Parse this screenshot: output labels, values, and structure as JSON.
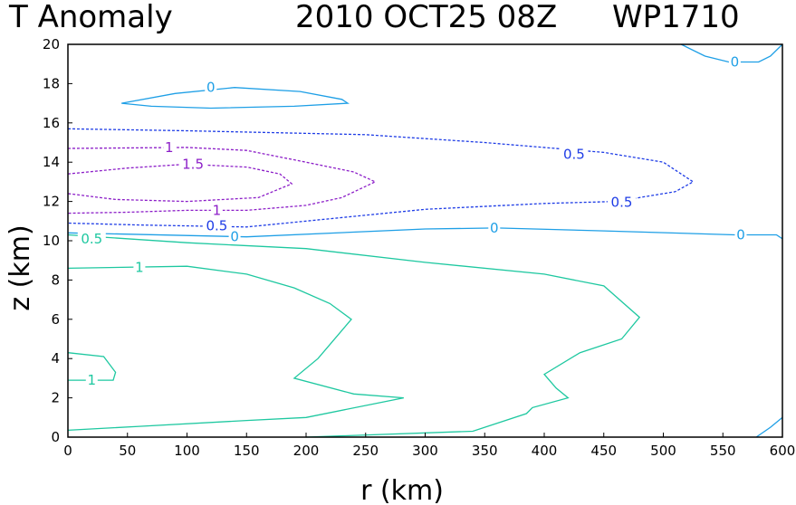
{
  "chart_data": {
    "type": "contour",
    "title_left": "T Anomaly",
    "title_mid": "2010 OCT25 08Z",
    "title_right": "WP1710",
    "xlabel": "r (km)",
    "ylabel": "z (km)",
    "xlim": [
      0,
      600
    ],
    "ylim": [
      0,
      20
    ],
    "xticks": [
      "0",
      "50",
      "100",
      "150",
      "200",
      "250",
      "300",
      "350",
      "400",
      "450",
      "500",
      "550",
      "600"
    ],
    "yticks": [
      "0",
      "2",
      "4",
      "6",
      "8",
      "10",
      "12",
      "14",
      "16",
      "18",
      "20"
    ],
    "grid": false,
    "colors": {
      "teal": "#1ec8a0",
      "cyan": "#1e9fe6",
      "blue": "#1e3ce6",
      "purple": "#8c1ec8"
    },
    "contours": [
      {
        "label": "0",
        "color": "cyan",
        "dashed": false,
        "closed": true,
        "points": [
          [
            45,
            17
          ],
          [
            90,
            17.5
          ],
          [
            140,
            17.8
          ],
          [
            195,
            17.6
          ],
          [
            230,
            17.2
          ],
          [
            235,
            17
          ],
          [
            190,
            16.85
          ],
          [
            120,
            16.75
          ],
          [
            70,
            16.85
          ]
        ]
      },
      {
        "label": "0",
        "color": "cyan",
        "dashed": false,
        "closed": false,
        "points": [
          [
            515,
            20
          ],
          [
            535,
            19.4
          ],
          [
            555,
            19.1
          ],
          [
            580,
            19.1
          ],
          [
            590,
            19.4
          ],
          [
            600,
            20
          ]
        ]
      },
      {
        "label": "0",
        "color": "cyan",
        "dashed": false,
        "closed": false,
        "points": [
          [
            0,
            10.4
          ],
          [
            150,
            10.2
          ],
          [
            300,
            10.6
          ],
          [
            360,
            10.65
          ],
          [
            450,
            10.5
          ],
          [
            560,
            10.3
          ],
          [
            595,
            10.3
          ],
          [
            600,
            10.1
          ]
        ]
      },
      {
        "label": "0",
        "color": "cyan",
        "dashed": false,
        "closed": false,
        "points": [
          [
            578,
            0
          ],
          [
            590,
            0.5
          ],
          [
            600,
            1
          ]
        ]
      },
      {
        "label": "0.5",
        "color": "teal",
        "dashed": false,
        "closed": false,
        "points": [
          [
            0,
            10.3
          ],
          [
            100,
            9.9
          ],
          [
            200,
            9.6
          ],
          [
            300,
            8.9
          ],
          [
            400,
            8.3
          ],
          [
            450,
            7.7
          ],
          [
            480,
            6.1
          ],
          [
            465,
            5
          ],
          [
            430,
            4.3
          ],
          [
            400,
            3.2
          ],
          [
            410,
            2.5
          ],
          [
            420,
            2
          ],
          [
            390,
            1.5
          ],
          [
            385,
            1.2
          ],
          [
            340,
            0.3
          ],
          [
            200,
            0
          ]
        ]
      },
      {
        "label": "1",
        "color": "teal",
        "dashed": false,
        "closed": false,
        "points": [
          [
            0,
            8.6
          ],
          [
            100,
            8.7
          ],
          [
            150,
            8.3
          ],
          [
            190,
            7.6
          ],
          [
            220,
            6.8
          ],
          [
            238,
            6
          ],
          [
            210,
            4
          ],
          [
            190,
            3
          ],
          [
            240,
            2.2
          ],
          [
            282,
            2
          ],
          [
            200,
            1
          ],
          [
            150,
            0.85
          ],
          [
            60,
            0.55
          ],
          [
            0,
            0.35
          ]
        ]
      },
      {
        "label": "1",
        "color": "teal",
        "dashed": false,
        "closed": false,
        "points": [
          [
            0,
            4.3
          ],
          [
            30,
            4.1
          ],
          [
            40,
            3.3
          ],
          [
            38,
            2.9
          ],
          [
            20,
            2.9
          ],
          [
            0,
            2.9
          ]
        ]
      },
      {
        "label": "0.5",
        "color": "blue",
        "dashed": true,
        "closed": false,
        "points": [
          [
            0,
            15.7
          ],
          [
            100,
            15.6
          ],
          [
            250,
            15.4
          ],
          [
            350,
            15
          ],
          [
            450,
            14.5
          ],
          [
            500,
            14
          ],
          [
            525,
            13
          ],
          [
            510,
            12.5
          ],
          [
            460,
            12
          ],
          [
            400,
            11.9
          ],
          [
            300,
            11.6
          ],
          [
            150,
            10.7
          ],
          [
            60,
            10.8
          ],
          [
            0,
            10.9
          ]
        ]
      },
      {
        "label": "1",
        "color": "purple",
        "dashed": true,
        "closed": false,
        "points": [
          [
            0,
            14.7
          ],
          [
            100,
            14.75
          ],
          [
            150,
            14.6
          ],
          [
            200,
            14
          ],
          [
            240,
            13.5
          ],
          [
            258,
            13
          ],
          [
            230,
            12.2
          ],
          [
            200,
            11.8
          ],
          [
            150,
            11.55
          ],
          [
            100,
            11.55
          ],
          [
            50,
            11.45
          ],
          [
            0,
            11.4
          ]
        ]
      },
      {
        "label": "1.5",
        "color": "purple",
        "dashed": true,
        "closed": false,
        "points": [
          [
            0,
            13.4
          ],
          [
            50,
            13.7
          ],
          [
            100,
            13.9
          ],
          [
            150,
            13.75
          ],
          [
            178,
            13.4
          ],
          [
            188,
            12.9
          ],
          [
            160,
            12.2
          ],
          [
            100,
            12
          ],
          [
            40,
            12.1
          ],
          [
            0,
            12.4
          ]
        ]
      }
    ],
    "contour_labels": [
      {
        "text": "0",
        "color": "cyan",
        "x": 120,
        "y": 17.8
      },
      {
        "text": "0",
        "color": "cyan",
        "x": 560,
        "y": 19.1
      },
      {
        "text": "0",
        "color": "cyan",
        "x": 140,
        "y": 10.2
      },
      {
        "text": "0",
        "color": "cyan",
        "x": 358,
        "y": 10.65
      },
      {
        "text": "0",
        "color": "cyan",
        "x": 565,
        "y": 10.3
      },
      {
        "text": "0.5",
        "color": "teal",
        "x": 20,
        "y": 10.1
      },
      {
        "text": "1",
        "color": "teal",
        "x": 60,
        "y": 8.65
      },
      {
        "text": "1",
        "color": "teal",
        "x": 20,
        "y": 2.9
      },
      {
        "text": "0.5",
        "color": "blue",
        "x": 425,
        "y": 14.4
      },
      {
        "text": "0.5",
        "color": "blue",
        "x": 465,
        "y": 11.95
      },
      {
        "text": "0.5",
        "color": "blue",
        "x": 125,
        "y": 10.75
      },
      {
        "text": "1",
        "color": "purple",
        "x": 85,
        "y": 14.75
      },
      {
        "text": "1",
        "color": "purple",
        "x": 125,
        "y": 11.55
      },
      {
        "text": "1.5",
        "color": "purple",
        "x": 105,
        "y": 13.9
      }
    ]
  }
}
